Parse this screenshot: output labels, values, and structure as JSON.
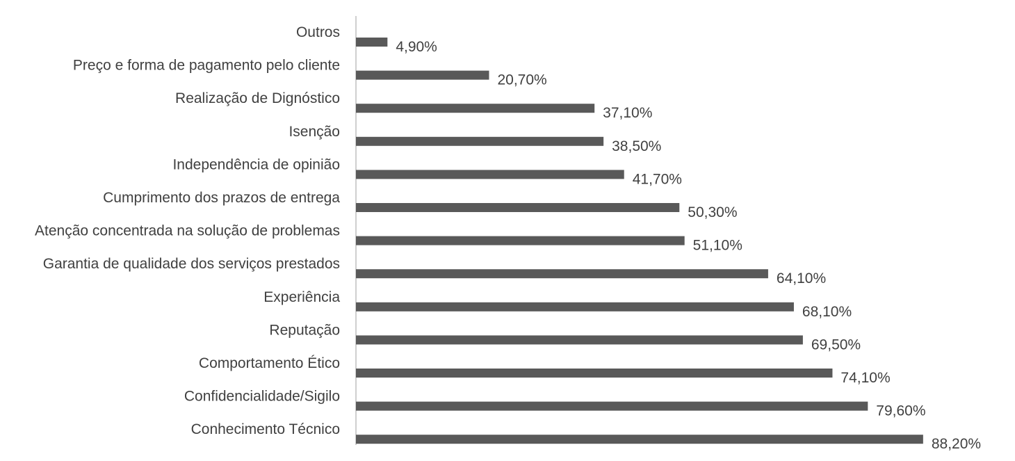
{
  "chart_data": {
    "type": "bar",
    "orientation": "horizontal",
    "categories": [
      "Outros",
      "Preço e forma de pagamento pelo cliente",
      "Realização de Dignóstico",
      "Isenção",
      "Independência de opinião",
      "Cumprimento dos prazos de entrega",
      "Atenção concentrada na solução de problemas",
      "Garantia de qualidade dos serviços prestados",
      "Experiência",
      "Reputação",
      "Comportamento Ético",
      "Confidencialidade/Sigilo",
      "Conhecimento Técnico"
    ],
    "values": [
      4.9,
      20.7,
      37.1,
      38.5,
      41.7,
      50.3,
      51.1,
      64.1,
      68.1,
      69.5,
      74.1,
      79.6,
      88.2
    ],
    "value_labels": [
      "4,90%",
      "20,70%",
      "37,10%",
      "38,50%",
      "41,70%",
      "50,30%",
      "51,10%",
      "64,10%",
      "68,10%",
      "69,50%",
      "74,10%",
      "79,60%",
      "88,20%"
    ],
    "unit": "%",
    "xlim": [
      0,
      100
    ],
    "grid": false,
    "legend": "none",
    "bar_color": "#595959",
    "text_color": "#404040",
    "axis_color": "#bfbfbf"
  }
}
